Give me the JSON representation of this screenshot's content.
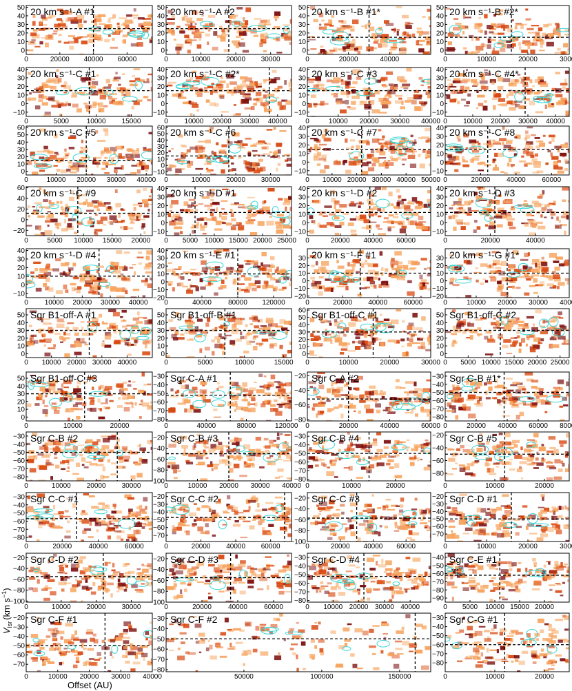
{
  "figure": {
    "xlabel": "Offset (AU)",
    "ylabel": "V",
    "ylabel_sub": "lsr",
    "ylabel_unit": "(km s",
    "ylabel_unit_sup": "−1",
    "ylabel_unit_close": ")",
    "colors": {
      "map_dark": "#7a0a0a",
      "map_mid": "#d9480f",
      "map_light": "#f7a35c",
      "contour": "#3ad6d6",
      "ref_line": "#000000"
    }
  },
  "chart_data": [
    {
      "type": "heatmap",
      "title": "20 km s⁻¹-A #1",
      "xlim": [
        0,
        75000
      ],
      "xticks": [
        0,
        20000,
        40000,
        60000
      ],
      "ylim": [
        -5,
        52
      ],
      "yticks": [
        0,
        10,
        20,
        30,
        40,
        50
      ],
      "ref_x": 40000,
      "ref_y": 25
    },
    {
      "type": "heatmap",
      "title": "20 km s⁻¹-A #2",
      "xlim": [
        0,
        36000
      ],
      "xticks": [
        0,
        10000,
        20000,
        30000
      ],
      "ylim": [
        -5,
        52
      ],
      "yticks": [
        0,
        10,
        20,
        30,
        40,
        50
      ],
      "ref_x": 18000,
      "ref_y": 25
    },
    {
      "type": "heatmap",
      "title": "20 km s⁻¹-B #1*",
      "xlim": [
        0,
        60000
      ],
      "xticks": [
        0,
        20000,
        40000
      ],
      "ylim": [
        -5,
        52
      ],
      "yticks": [
        0,
        10,
        20,
        30,
        40,
        50
      ],
      "ref_x": 30000,
      "ref_y": 15
    },
    {
      "type": "heatmap",
      "title": "20 km s⁻¹-B #2*",
      "xlim": [
        0,
        30000
      ],
      "xticks": [
        0,
        10000,
        20000,
        30000
      ],
      "ylim": [
        -5,
        52
      ],
      "yticks": [
        0,
        10,
        20,
        30,
        40,
        50
      ],
      "ref_x": 16000,
      "ref_y": 15
    },
    {
      "type": "heatmap",
      "title": "20 km s⁻¹-C #1",
      "xlim": [
        0,
        18000
      ],
      "xticks": [
        0,
        5000,
        10000,
        15000
      ],
      "ylim": [
        -15,
        42
      ],
      "yticks": [
        -10,
        0,
        10,
        20,
        30,
        40
      ],
      "ref_x": 9000,
      "ref_y": 15
    },
    {
      "type": "heatmap",
      "title": "20 km s⁻¹-C #2*",
      "xlim": [
        0,
        45000
      ],
      "xticks": [
        0,
        10000,
        20000,
        30000,
        40000
      ],
      "ylim": [
        -15,
        42
      ],
      "yticks": [
        -10,
        0,
        10,
        20,
        30,
        40
      ],
      "ref_x": 37000,
      "ref_y": 15
    },
    {
      "type": "heatmap",
      "title": "20 km s⁻¹-C #3",
      "xlim": [
        0,
        40000
      ],
      "xticks": [
        0,
        10000,
        20000,
        30000,
        40000
      ],
      "ylim": [
        -15,
        42
      ],
      "yticks": [
        -10,
        0,
        10,
        20,
        30,
        40
      ],
      "ref_x": 20000,
      "ref_y": 15
    },
    {
      "type": "heatmap",
      "title": "20 km s⁻¹-C #4*",
      "xlim": [
        0,
        45000
      ],
      "xticks": [
        0,
        10000,
        20000,
        30000,
        40000
      ],
      "ylim": [
        -15,
        42
      ],
      "yticks": [
        -10,
        0,
        10,
        20,
        30,
        40
      ],
      "ref_x": 29000,
      "ref_y": 15
    },
    {
      "type": "heatmap",
      "title": "20 km s⁻¹-C #5",
      "xlim": [
        0,
        42000
      ],
      "xticks": [
        0,
        10000,
        20000,
        30000,
        40000
      ],
      "ylim": [
        -5,
        62
      ],
      "yticks": [
        0,
        10,
        20,
        30,
        40,
        50,
        60
      ],
      "ref_x": 20000,
      "ref_y": 15
    },
    {
      "type": "heatmap",
      "title": "20 km s⁻¹-C #6",
      "xlim": [
        0,
        36000
      ],
      "xticks": [
        0,
        10000,
        20000,
        30000
      ],
      "ylim": [
        -15,
        62
      ],
      "yticks": [
        -10,
        0,
        10,
        20,
        30,
        40,
        50,
        60
      ],
      "ref_x": 18000,
      "ref_y": 15
    },
    {
      "type": "heatmap",
      "title": "20 km s⁻¹-C #7",
      "xlim": [
        0,
        50000
      ],
      "xticks": [
        0,
        10000,
        20000,
        30000,
        40000,
        50000
      ],
      "ylim": [
        -15,
        42
      ],
      "yticks": [
        -10,
        0,
        10,
        20,
        30,
        40
      ],
      "ref_x": 22000,
      "ref_y": 15
    },
    {
      "type": "heatmap",
      "title": "20 km s⁻¹-C #8",
      "xlim": [
        0,
        70000
      ],
      "xticks": [
        0,
        20000,
        40000,
        60000
      ],
      "ylim": [
        -15,
        42
      ],
      "yticks": [
        -10,
        0,
        10,
        20,
        30,
        40
      ],
      "ref_x": 24000,
      "ref_y": 15
    },
    {
      "type": "heatmap",
      "title": "20 km s⁻¹-C #9",
      "xlim": [
        0,
        22000
      ],
      "xticks": [
        0,
        5000,
        10000,
        15000,
        20000
      ],
      "ylim": [
        -30,
        62
      ],
      "yticks": [
        -20,
        0,
        20,
        40,
        60
      ],
      "ref_x": 9000,
      "ref_y": 12
    },
    {
      "type": "heatmap",
      "title": "20 km s⁻¹-D #1",
      "xlim": [
        0,
        26000
      ],
      "xticks": [
        0,
        5000,
        10000,
        15000,
        20000,
        25000
      ],
      "ylim": [
        -15,
        42
      ],
      "yticks": [
        -10,
        0,
        10,
        20,
        30,
        40
      ],
      "ref_x": 6000,
      "ref_y": 12
    },
    {
      "type": "heatmap",
      "title": "20 km s⁻¹-D #2",
      "xlim": [
        0,
        75000
      ],
      "xticks": [
        0,
        20000,
        40000,
        60000
      ],
      "ylim": [
        -15,
        42
      ],
      "yticks": [
        -10,
        0,
        10,
        20,
        30,
        40
      ],
      "ref_x": 38000,
      "ref_y": 12
    },
    {
      "type": "heatmap",
      "title": "20 km s⁻¹-D #3",
      "xlim": [
        0,
        55000
      ],
      "xticks": [
        0,
        20000,
        40000
      ],
      "ylim": [
        -15,
        42
      ],
      "yticks": [
        -10,
        0,
        10,
        20,
        30,
        40
      ],
      "ref_x": 22000,
      "ref_y": 12
    },
    {
      "type": "heatmap",
      "title": "20 km s⁻¹-D #4",
      "xlim": [
        0,
        45000
      ],
      "xticks": [
        0,
        10000,
        20000,
        30000,
        40000
      ],
      "ylim": [
        -15,
        42
      ],
      "yticks": [
        -10,
        0,
        10,
        20,
        30,
        40
      ],
      "ref_x": 26000,
      "ref_y": 10
    },
    {
      "type": "heatmap",
      "title": "20 km s⁻¹-E #1",
      "xlim": [
        0,
        140000
      ],
      "xticks": [
        0,
        40000,
        80000,
        120000
      ],
      "ylim": [
        -20,
        42
      ],
      "yticks": [
        -20,
        -10,
        0,
        10,
        20,
        30,
        40
      ],
      "ref_x": 80000,
      "ref_y": 10
    },
    {
      "type": "heatmap",
      "title": "20 km s⁻¹-F #1",
      "xlim": [
        0,
        70000
      ],
      "xticks": [
        0,
        20000,
        40000,
        60000
      ],
      "ylim": [
        -22,
        42
      ],
      "yticks": [
        -20,
        -10,
        0,
        10,
        20,
        30
      ],
      "ref_x": 30000,
      "ref_y": 10
    },
    {
      "type": "heatmap",
      "title": "20 km s⁻¹-G #1*",
      "xlim": [
        0,
        40000
      ],
      "xticks": [
        0,
        10000,
        20000,
        30000,
        40000
      ],
      "ylim": [
        -22,
        42
      ],
      "yticks": [
        -20,
        -10,
        0,
        10,
        20,
        30
      ],
      "ref_x": 20000,
      "ref_y": 10
    },
    {
      "type": "heatmap",
      "title": "Sgr B1-off-A #1",
      "xlim": [
        0,
        50000
      ],
      "xticks": [
        0,
        10000,
        20000,
        30000,
        40000
      ],
      "ylim": [
        -5,
        58
      ],
      "yticks": [
        0,
        10,
        20,
        30,
        40,
        50
      ],
      "ref_x": 25000,
      "ref_y": 30
    },
    {
      "type": "heatmap",
      "title": "Sgr B1-off-B #1",
      "xlim": [
        0,
        16000
      ],
      "xticks": [
        0,
        5000,
        10000,
        15000
      ],
      "ylim": [
        -5,
        58
      ],
      "yticks": [
        0,
        10,
        20,
        30,
        40,
        50
      ],
      "ref_x": 7500,
      "ref_y": 30
    },
    {
      "type": "heatmap",
      "title": "Sgr B1-off-C #1",
      "xlim": [
        0,
        30000
      ],
      "xticks": [
        0,
        10000,
        20000,
        30000
      ],
      "ylim": [
        -5,
        62
      ],
      "yticks": [
        0,
        10,
        20,
        30,
        40,
        50,
        60
      ],
      "ref_x": 16000,
      "ref_y": 30
    },
    {
      "type": "heatmap",
      "title": "Sgr B1-off-C #2",
      "xlim": [
        0,
        27000
      ],
      "xticks": [
        0,
        5000,
        10000,
        15000,
        20000,
        25000
      ],
      "ylim": [
        -5,
        58
      ],
      "yticks": [
        0,
        10,
        20,
        30,
        40,
        50
      ],
      "ref_x": 12000,
      "ref_y": 30
    },
    {
      "type": "heatmap",
      "title": "Sgr B1-off-C #3",
      "xlim": [
        0,
        27000
      ],
      "xticks": [
        0,
        10000,
        20000
      ],
      "ylim": [
        -5,
        58
      ],
      "yticks": [
        0,
        10,
        20,
        30,
        40,
        50
      ],
      "ref_x": 12500,
      "ref_y": 30
    },
    {
      "type": "heatmap",
      "title": "Sgr C-A #1",
      "xlim": [
        0,
        125000
      ],
      "xticks": [
        0,
        40000,
        80000,
        120000
      ],
      "ylim": [
        -82,
        -25
      ],
      "yticks": [
        -80,
        -70,
        -60,
        -50,
        -40,
        -30
      ],
      "ref_x": 64000,
      "ref_y": -52
    },
    {
      "type": "heatmap",
      "title": "Sgr C-A #2",
      "xlim": [
        0,
        60000
      ],
      "xticks": [
        0,
        20000,
        40000,
        60000
      ],
      "ylim": [
        -82,
        -15
      ],
      "yticks": [
        -80,
        -60,
        -40,
        -20
      ],
      "ref_x": 20000,
      "ref_y": -52
    },
    {
      "type": "heatmap",
      "title": "Sgr C-B #1*",
      "xlim": [
        0,
        80000
      ],
      "xticks": [
        0,
        20000,
        40000,
        60000,
        80000
      ],
      "ylim": [
        -85,
        -25
      ],
      "yticks": [
        -80,
        -70,
        -60,
        -50,
        -40,
        -30
      ],
      "ref_x": 38000,
      "ref_y": -50
    },
    {
      "type": "heatmap",
      "title": "Sgr C-B #2",
      "xlim": [
        0,
        36000
      ],
      "xticks": [
        0,
        10000,
        20000,
        30000
      ],
      "ylim": [
        -85,
        -25
      ],
      "yticks": [
        -80,
        -70,
        -60,
        -50,
        -40,
        -30
      ],
      "ref_x": 26000,
      "ref_y": -50
    },
    {
      "type": "heatmap",
      "title": "Sgr C-B #3",
      "xlim": [
        0,
        40000
      ],
      "xticks": [
        0,
        10000,
        20000,
        30000,
        40000
      ],
      "ylim": [
        -100,
        -10
      ],
      "yticks": [
        -100,
        -80,
        -60,
        -40,
        -20
      ],
      "ref_x": 20000,
      "ref_y": -50
    },
    {
      "type": "heatmap",
      "title": "Sgr C-B #4",
      "xlim": [
        0,
        28000
      ],
      "xticks": [
        0,
        10000,
        20000
      ],
      "ylim": [
        -82,
        -25
      ],
      "yticks": [
        -80,
        -70,
        -60,
        -50,
        -40,
        -30
      ],
      "ref_x": 14000,
      "ref_y": -50
    },
    {
      "type": "heatmap",
      "title": "Sgr C-B #5",
      "xlim": [
        0,
        25000
      ],
      "xticks": [
        0,
        10000,
        20000
      ],
      "ylim": [
        -92,
        -15
      ],
      "yticks": [
        -80,
        -60,
        -40,
        -20
      ],
      "ref_x": 12000,
      "ref_y": -50
    },
    {
      "type": "heatmap",
      "title": "Sgr C-C #1",
      "xlim": [
        0,
        70000
      ],
      "xticks": [
        0,
        20000,
        40000,
        60000
      ],
      "ylim": [
        -85,
        -25
      ],
      "yticks": [
        -80,
        -70,
        -60,
        -50,
        -40,
        -30
      ],
      "ref_x": 28000,
      "ref_y": -57
    },
    {
      "type": "heatmap",
      "title": "Sgr C-C #2",
      "xlim": [
        0,
        72000
      ],
      "xticks": [
        0,
        20000,
        40000,
        60000
      ],
      "ylim": [
        -78,
        -15
      ],
      "yticks": [
        -70,
        -60,
        -50,
        -40,
        -30,
        -20
      ],
      "ref_x": 68000,
      "ref_y": -47
    },
    {
      "type": "heatmap",
      "title": "Sgr C-C #3",
      "xlim": [
        0,
        75000
      ],
      "xticks": [
        0,
        20000,
        40000,
        60000
      ],
      "ylim": [
        -100,
        -10
      ],
      "yticks": [
        -100,
        -80,
        -60,
        -40,
        -20
      ],
      "ref_x": 30000,
      "ref_y": -57
    },
    {
      "type": "heatmap",
      "title": "Sgr C-D #1",
      "xlim": [
        0,
        30000
      ],
      "xticks": [
        0,
        10000,
        20000,
        30000
      ],
      "ylim": [
        -80,
        -15
      ],
      "yticks": [
        -70,
        -60,
        -50,
        -40,
        -30,
        -20
      ],
      "ref_x": 16000,
      "ref_y": -50
    },
    {
      "type": "heatmap",
      "title": "Sgr C-D #2",
      "xlim": [
        0,
        36000
      ],
      "xticks": [
        0,
        10000,
        20000,
        30000
      ],
      "ylim": [
        -102,
        -12
      ],
      "yticks": [
        -100,
        -80,
        -60,
        -40,
        -20
      ],
      "ref_x": 22000,
      "ref_y": -55
    },
    {
      "type": "heatmap",
      "title": "Sgr C-D #3",
      "xlim": [
        0,
        70000
      ],
      "xticks": [
        0,
        20000,
        40000,
        60000
      ],
      "ylim": [
        -100,
        -10
      ],
      "yticks": [
        -100,
        -80,
        -60,
        -40,
        -20
      ],
      "ref_x": 36000,
      "ref_y": -55
    },
    {
      "type": "heatmap",
      "title": "Sgr C-D #4",
      "xlim": [
        0,
        48000
      ],
      "xticks": [
        0,
        10000,
        20000,
        30000,
        40000
      ],
      "ylim": [
        -82,
        -25
      ],
      "yticks": [
        -80,
        -70,
        -60,
        -50,
        -40,
        -30
      ],
      "ref_x": 22000,
      "ref_y": -52
    },
    {
      "type": "heatmap",
      "title": "Sgr C-E #1",
      "xlim": [
        0,
        25000
      ],
      "xticks": [
        0,
        5000,
        10000,
        15000,
        20000
      ],
      "ylim": [
        -95,
        -35
      ],
      "yticks": [
        -90,
        -80,
        -70,
        -60,
        -50,
        -40
      ],
      "ref_x": 11000,
      "ref_y": -62
    },
    {
      "type": "heatmap",
      "title": "Sgr C-F #1",
      "xlim": [
        0,
        40000
      ],
      "xticks": [
        0,
        10000,
        20000,
        30000,
        40000
      ],
      "ylim": [
        -78,
        -15
      ],
      "yticks": [
        -70,
        -60,
        -50,
        -40,
        -30,
        -20
      ],
      "ref_x": 25000,
      "ref_y": -50
    },
    {
      "type": "heatmap",
      "title": "Sgr C-F #2",
      "xlim": [
        0,
        170000
      ],
      "xticks": [
        50000,
        100000,
        150000
      ],
      "ylim": [
        -82,
        -25
      ],
      "yticks": [
        -80,
        -70,
        -60,
        -50,
        -40,
        -30
      ],
      "ref_x": 160000,
      "ref_y": -50
    },
    {
      "type": "heatmap",
      "title": "Sgr C-G #1",
      "xlim": [
        0,
        25000
      ],
      "xticks": [
        0,
        10000,
        20000
      ],
      "ylim": [
        -90,
        -25
      ],
      "yticks": [
        -80,
        -70,
        -60,
        -50,
        -40,
        -30
      ],
      "ref_x": 12000,
      "ref_y": -60
    }
  ]
}
